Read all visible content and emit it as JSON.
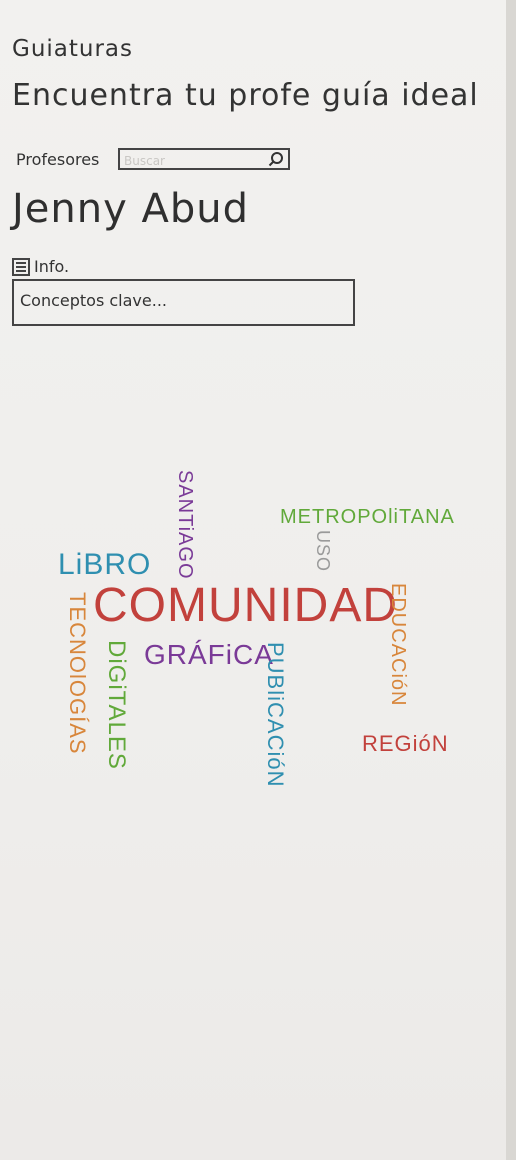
{
  "app": {
    "title": "Guiaturas",
    "tagline": "Encuentra tu profe guía ideal"
  },
  "search": {
    "label": "Profesores",
    "placeholder": "Buscar"
  },
  "profile": {
    "name": "Jenny Abud"
  },
  "info": {
    "label": "Info."
  },
  "keywords": {
    "label": "Conceptos clave..."
  },
  "word_cloud": {
    "words": [
      {
        "text": "COMUNIDAD",
        "color": "#c2413c"
      },
      {
        "text": "LiBRO",
        "color": "#2f8fb0"
      },
      {
        "text": "SANTiAGO",
        "color": "#7a3a97"
      },
      {
        "text": "METROPOliTANA",
        "color": "#61a93a"
      },
      {
        "text": "USO",
        "color": "#9a9a9a"
      },
      {
        "text": "EDUCACióN",
        "color": "#d8863b"
      },
      {
        "text": "GRÁFiCA",
        "color": "#7a3a97"
      },
      {
        "text": "TECNOlOGÍAS",
        "color": "#d8863b"
      },
      {
        "text": "DiGiTALES",
        "color": "#61a93a"
      },
      {
        "text": "PUBliCACióN",
        "color": "#2f8fb0"
      },
      {
        "text": "REGióN",
        "color": "#c2413c"
      }
    ]
  }
}
